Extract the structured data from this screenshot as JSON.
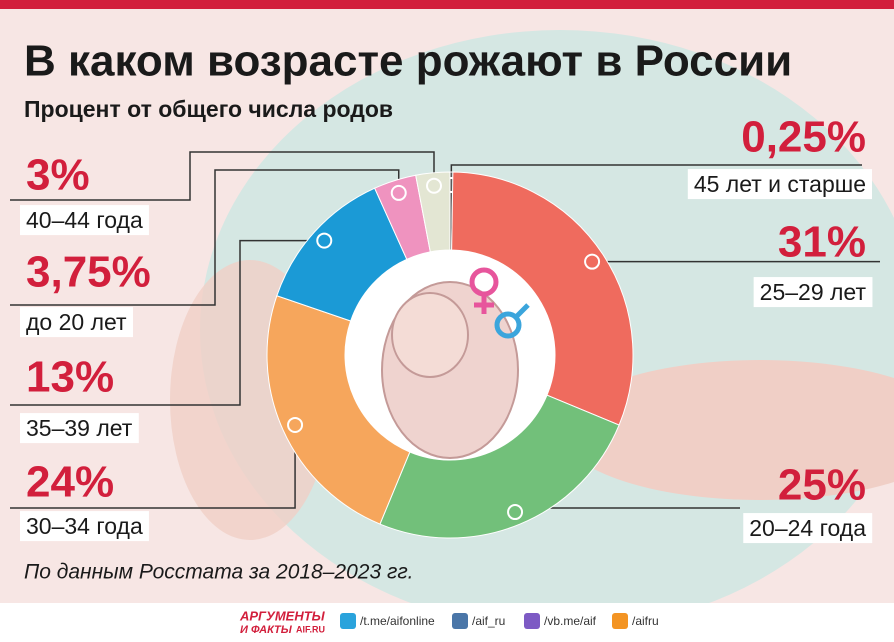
{
  "chart_data": {
    "type": "donut",
    "title": "В каком возрасте рожают в России",
    "subtitle": "Процент от общего числа родов",
    "categories": [
      "45 лет и старше",
      "25–29 лет",
      "20–24 года",
      "30–34 года",
      "35–39 лет",
      "до 20 лет",
      "40–44 года"
    ],
    "values": [
      0.25,
      31,
      25,
      24,
      13,
      3.75,
      3
    ],
    "value_labels": [
      "0,25%",
      "31%",
      "25%",
      "24%",
      "13%",
      "3,75%",
      "3%"
    ],
    "colors": [
      "#5a5a5a",
      "#ef6b5e",
      "#72c07a",
      "#f6a65c",
      "#1b9ad6",
      "#ef93bf",
      "#e3e6d3"
    ],
    "source": "По данным Росстата за 2018–2023 гг."
  },
  "footer": {
    "logo_top": "АРГУМЕНТЫ",
    "logo_bottom": "И ФАКТЫ",
    "logo_site": "AIF.RU",
    "links": [
      "/t.me/aifonline",
      "/aif_ru",
      "/vb.me/aif",
      "/aifru"
    ]
  }
}
